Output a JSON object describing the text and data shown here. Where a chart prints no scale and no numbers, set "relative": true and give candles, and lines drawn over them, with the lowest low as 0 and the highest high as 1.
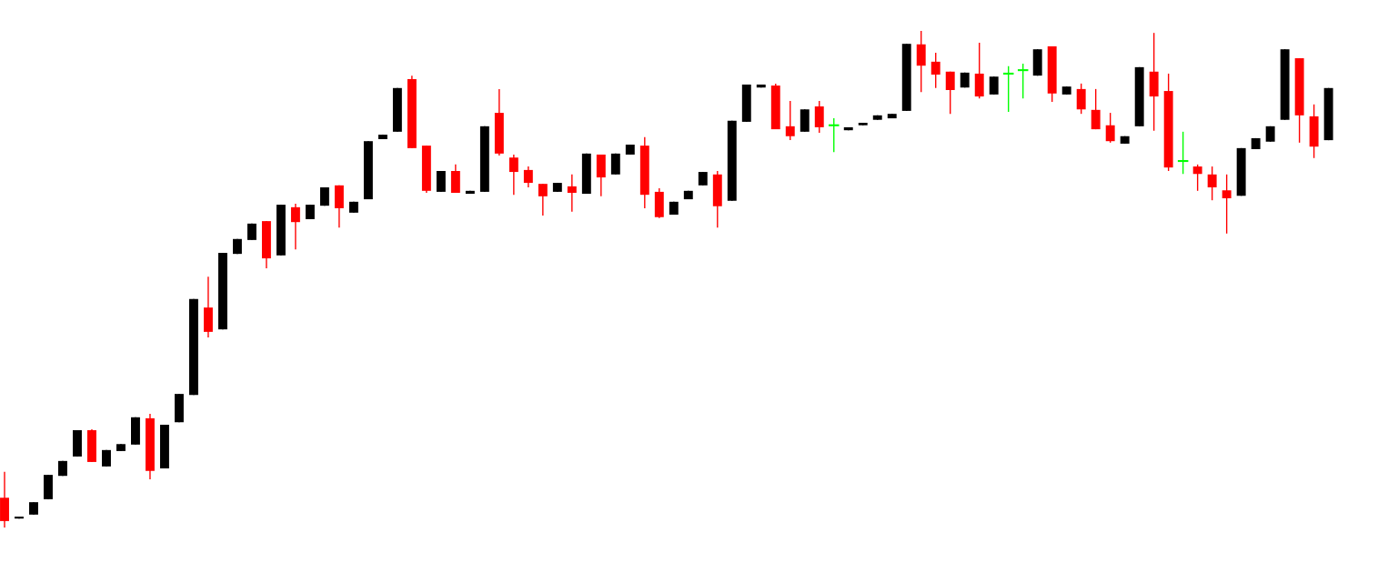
{
  "chart_data": {
    "type": "candlestick",
    "relative": true,
    "categories": [
      null,
      null,
      null,
      null,
      null,
      null,
      null,
      null,
      null,
      null,
      null,
      null,
      null,
      null,
      null,
      null,
      null,
      null,
      null,
      null,
      null,
      null,
      null,
      null,
      null,
      null,
      null,
      null,
      null,
      null,
      null,
      null,
      null,
      null,
      null,
      null,
      null,
      null,
      null,
      null,
      null,
      null,
      null,
      null,
      null,
      null,
      null,
      null,
      null,
      null,
      null,
      null,
      null,
      null,
      null,
      null,
      null,
      null,
      null,
      null,
      null,
      null,
      null,
      null,
      null,
      null,
      null,
      null,
      null,
      null,
      null,
      null,
      null,
      null,
      null,
      null,
      null,
      null,
      null,
      null,
      null,
      null,
      null,
      null,
      null,
      null,
      null,
      null,
      null,
      null,
      null,
      null
    ],
    "ohlc": [
      [
        0.06,
        0.112,
        0.0,
        0.013
      ],
      [
        0.018,
        0.022,
        0.018,
        0.022
      ],
      [
        0.026,
        0.051,
        0.026,
        0.051
      ],
      [
        0.057,
        0.106,
        0.057,
        0.106
      ],
      [
        0.104,
        0.134,
        0.104,
        0.134
      ],
      [
        0.143,
        0.196,
        0.143,
        0.196
      ],
      [
        0.196,
        0.198,
        0.132,
        0.132
      ],
      [
        0.123,
        0.156,
        0.123,
        0.156
      ],
      [
        0.154,
        0.168,
        0.154,
        0.168
      ],
      [
        0.167,
        0.222,
        0.167,
        0.222
      ],
      [
        0.22,
        0.229,
        0.097,
        0.114
      ],
      [
        0.119,
        0.207,
        0.119,
        0.207
      ],
      [
        0.212,
        0.269,
        0.212,
        0.269
      ],
      [
        0.267,
        0.46,
        0.267,
        0.46
      ],
      [
        0.443,
        0.505,
        0.383,
        0.394
      ],
      [
        0.399,
        0.553,
        0.399,
        0.553
      ],
      [
        0.551,
        0.581,
        0.551,
        0.581
      ],
      [
        0.579,
        0.612,
        0.579,
        0.612
      ],
      [
        0.617,
        0.617,
        0.522,
        0.542
      ],
      [
        0.548,
        0.65,
        0.548,
        0.65
      ],
      [
        0.645,
        0.652,
        0.56,
        0.615
      ],
      [
        0.621,
        0.65,
        0.621,
        0.65
      ],
      [
        0.648,
        0.685,
        0.648,
        0.685
      ],
      [
        0.689,
        0.689,
        0.604,
        0.643
      ],
      [
        0.634,
        0.656,
        0.634,
        0.656
      ],
      [
        0.661,
        0.778,
        0.661,
        0.778
      ],
      [
        0.782,
        0.791,
        0.782,
        0.791
      ],
      [
        0.797,
        0.885,
        0.797,
        0.885
      ],
      [
        0.903,
        0.91,
        0.764,
        0.764
      ],
      [
        0.769,
        0.769,
        0.674,
        0.678
      ],
      [
        0.676,
        0.718,
        0.676,
        0.718
      ],
      [
        0.718,
        0.731,
        0.674,
        0.674
      ],
      [
        0.672,
        0.678,
        0.672,
        0.678
      ],
      [
        0.676,
        0.808,
        0.676,
        0.808
      ],
      [
        0.835,
        0.883,
        0.749,
        0.753
      ],
      [
        0.745,
        0.751,
        0.67,
        0.716
      ],
      [
        0.72,
        0.727,
        0.685,
        0.694
      ],
      [
        0.692,
        0.692,
        0.628,
        0.667
      ],
      [
        0.676,
        0.694,
        0.676,
        0.694
      ],
      [
        0.687,
        0.711,
        0.636,
        0.674
      ],
      [
        0.672,
        0.753,
        0.672,
        0.753
      ],
      [
        0.751,
        0.751,
        0.667,
        0.705
      ],
      [
        0.711,
        0.753,
        0.711,
        0.753
      ],
      [
        0.751,
        0.771,
        0.751,
        0.771
      ],
      [
        0.769,
        0.786,
        0.643,
        0.67
      ],
      [
        0.676,
        0.683,
        0.623,
        0.625
      ],
      [
        0.63,
        0.656,
        0.63,
        0.656
      ],
      [
        0.661,
        0.678,
        0.661,
        0.678
      ],
      [
        0.689,
        0.716,
        0.689,
        0.716
      ],
      [
        0.711,
        0.718,
        0.604,
        0.647
      ],
      [
        0.658,
        0.819,
        0.658,
        0.819
      ],
      [
        0.817,
        0.892,
        0.817,
        0.892
      ],
      [
        0.886,
        0.892,
        0.886,
        0.892
      ],
      [
        0.89,
        0.894,
        0.802,
        0.802
      ],
      [
        0.808,
        0.859,
        0.78,
        0.788
      ],
      [
        0.797,
        0.842,
        0.797,
        0.842
      ],
      [
        0.848,
        0.859,
        0.795,
        0.806
      ],
      [
        0.81,
        0.824,
        0.756,
        0.81
      ],
      [
        0.8,
        0.806,
        0.8,
        0.806
      ],
      [
        0.81,
        0.815,
        0.81,
        0.815
      ],
      [
        0.821,
        0.83,
        0.821,
        0.83
      ],
      [
        0.824,
        0.833,
        0.824,
        0.833
      ],
      [
        0.839,
        0.974,
        0.839,
        0.974
      ],
      [
        0.973,
        1.0,
        0.877,
        0.93
      ],
      [
        0.938,
        0.956,
        0.885,
        0.912
      ],
      [
        0.918,
        0.918,
        0.833,
        0.881
      ],
      [
        0.886,
        0.916,
        0.886,
        0.916
      ],
      [
        0.914,
        0.976,
        0.864,
        0.868
      ],
      [
        0.872,
        0.908,
        0.872,
        0.908
      ],
      [
        0.914,
        0.929,
        0.837,
        0.914
      ],
      [
        0.921,
        0.934,
        0.864,
        0.921
      ],
      [
        0.91,
        0.963,
        0.91,
        0.963
      ],
      [
        0.969,
        0.969,
        0.857,
        0.874
      ],
      [
        0.872,
        0.888,
        0.872,
        0.888
      ],
      [
        0.883,
        0.894,
        0.833,
        0.842
      ],
      [
        0.841,
        0.883,
        0.802,
        0.802
      ],
      [
        0.81,
        0.835,
        0.775,
        0.778
      ],
      [
        0.773,
        0.788,
        0.773,
        0.788
      ],
      [
        0.808,
        0.927,
        0.808,
        0.927
      ],
      [
        0.918,
        0.996,
        0.799,
        0.868
      ],
      [
        0.879,
        0.914,
        0.718,
        0.725
      ],
      [
        0.738,
        0.797,
        0.712,
        0.738
      ],
      [
        0.727,
        0.731,
        0.678,
        0.712
      ],
      [
        0.711,
        0.727,
        0.659,
        0.685
      ],
      [
        0.679,
        0.711,
        0.592,
        0.663
      ],
      [
        0.668,
        0.764,
        0.668,
        0.764
      ],
      [
        0.762,
        0.784,
        0.762,
        0.784
      ],
      [
        0.777,
        0.808,
        0.777,
        0.808
      ],
      [
        0.821,
        0.963,
        0.821,
        0.963
      ],
      [
        0.945,
        0.945,
        0.775,
        0.83
      ],
      [
        0.828,
        0.852,
        0.744,
        0.767
      ],
      [
        0.78,
        0.885,
        0.78,
        0.885
      ]
    ],
    "colors": [
      "#ff0000",
      "#000000",
      "#000000",
      "#000000",
      "#000000",
      "#000000",
      "#ff0000",
      "#000000",
      "#000000",
      "#000000",
      "#ff0000",
      "#000000",
      "#000000",
      "#000000",
      "#ff0000",
      "#000000",
      "#000000",
      "#000000",
      "#ff0000",
      "#000000",
      "#ff0000",
      "#000000",
      "#000000",
      "#ff0000",
      "#000000",
      "#000000",
      "#000000",
      "#000000",
      "#ff0000",
      "#ff0000",
      "#000000",
      "#ff0000",
      "#000000",
      "#000000",
      "#ff0000",
      "#ff0000",
      "#ff0000",
      "#ff0000",
      "#000000",
      "#ff0000",
      "#000000",
      "#ff0000",
      "#000000",
      "#000000",
      "#ff0000",
      "#ff0000",
      "#000000",
      "#000000",
      "#000000",
      "#ff0000",
      "#000000",
      "#000000",
      "#000000",
      "#ff0000",
      "#ff0000",
      "#000000",
      "#ff0000",
      "#00ff00",
      "#000000",
      "#000000",
      "#000000",
      "#000000",
      "#000000",
      "#ff0000",
      "#ff0000",
      "#ff0000",
      "#000000",
      "#ff0000",
      "#000000",
      "#00ff00",
      "#00ff00",
      "#000000",
      "#ff0000",
      "#000000",
      "#ff0000",
      "#ff0000",
      "#ff0000",
      "#000000",
      "#000000",
      "#ff0000",
      "#ff0000",
      "#00ff00",
      "#ff0000",
      "#ff0000",
      "#ff0000",
      "#000000",
      "#000000",
      "#000000",
      "#000000",
      "#ff0000",
      "#ff0000",
      "#000000"
    ]
  }
}
